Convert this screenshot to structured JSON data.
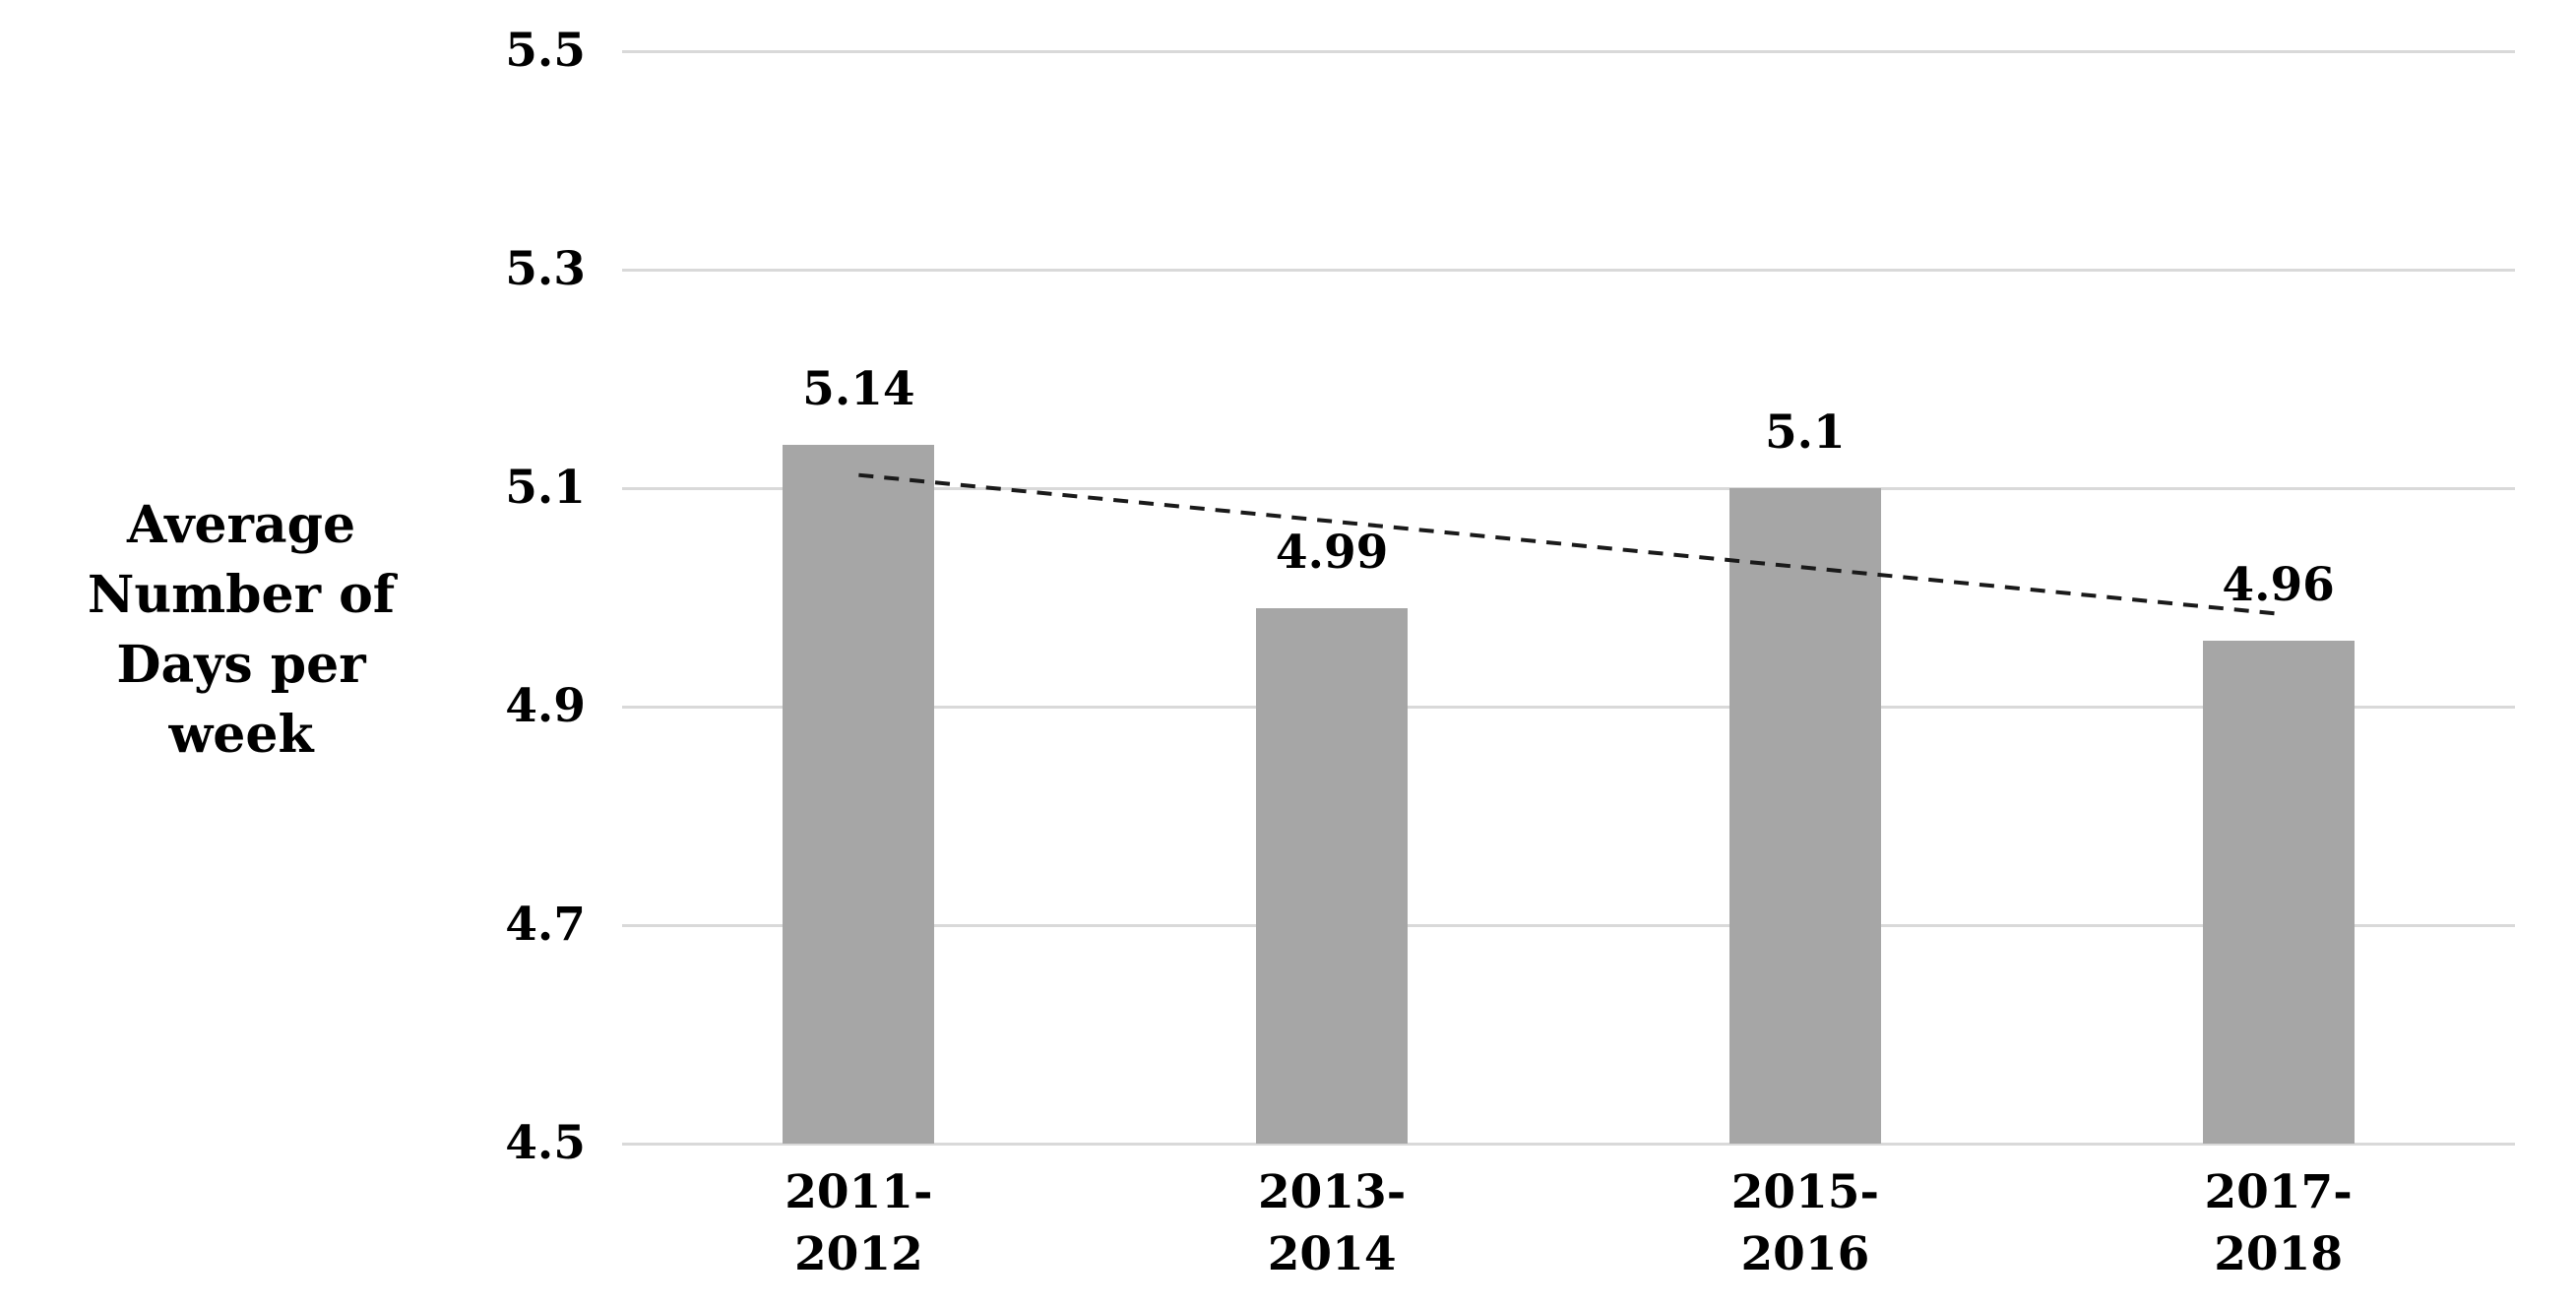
{
  "chart_data": {
    "type": "bar",
    "title": "",
    "ylabel_lines": [
      "Average",
      "Number of",
      "Days per week"
    ],
    "categories": [
      [
        "2011-",
        "2012"
      ],
      [
        "2013-",
        "2014"
      ],
      [
        "2015-",
        "2016"
      ],
      [
        "2017-",
        "2018"
      ]
    ],
    "values": [
      5.14,
      4.99,
      5.1,
      4.96
    ],
    "data_labels": [
      "5.14",
      "4.99",
      "5.1",
      "4.96"
    ],
    "y_ticks": [
      "5.5",
      "5.3",
      "5.1",
      "4.9",
      "4.7",
      "4.5"
    ],
    "y_tick_values": [
      5.5,
      5.3,
      5.1,
      4.9,
      4.7,
      4.5
    ],
    "ylim": [
      4.5,
      5.5
    ],
    "grid": "horizontal",
    "legend": "none",
    "trendline": {
      "type": "linear",
      "style": "dashed",
      "start_value": 5.112,
      "end_value": 4.985
    },
    "colors": {
      "bar": "#a6a6a6",
      "gridline": "#d9d9d9",
      "trendline": "#1a1a1a",
      "text": "#000000",
      "background": "#ffffff"
    }
  }
}
